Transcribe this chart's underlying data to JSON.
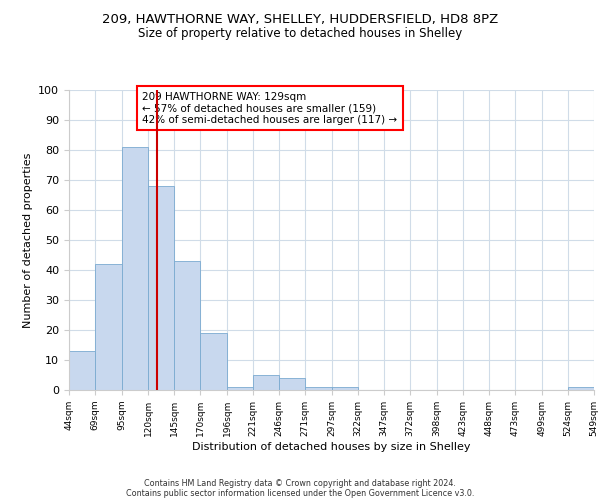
{
  "title1": "209, HAWTHORNE WAY, SHELLEY, HUDDERSFIELD, HD8 8PZ",
  "title2": "Size of property relative to detached houses in Shelley",
  "xlabel": "Distribution of detached houses by size in Shelley",
  "ylabel": "Number of detached properties",
  "annotation_line1": "209 HAWTHORNE WAY: 129sqm",
  "annotation_line2": "← 57% of detached houses are smaller (159)",
  "annotation_line3": "42% of semi-detached houses are larger (117) →",
  "bar_color": "#c8d8ee",
  "bar_edge_color": "#7aaad0",
  "vline_color": "#cc0000",
  "vline_x": 129,
  "bins": [
    44,
    69,
    95,
    120,
    145,
    170,
    196,
    221,
    246,
    271,
    297,
    322,
    347,
    372,
    398,
    423,
    448,
    473,
    499,
    524,
    549
  ],
  "bin_labels": [
    "44sqm",
    "69sqm",
    "95sqm",
    "120sqm",
    "145sqm",
    "170sqm",
    "196sqm",
    "221sqm",
    "246sqm",
    "271sqm",
    "297sqm",
    "322sqm",
    "347sqm",
    "372sqm",
    "398sqm",
    "423sqm",
    "448sqm",
    "473sqm",
    "499sqm",
    "524sqm",
    "549sqm"
  ],
  "counts": [
    13,
    42,
    81,
    68,
    43,
    19,
    1,
    5,
    4,
    1,
    1,
    0,
    0,
    0,
    0,
    0,
    0,
    0,
    0,
    1,
    0
  ],
  "ylim": [
    0,
    100
  ],
  "yticks": [
    0,
    10,
    20,
    30,
    40,
    50,
    60,
    70,
    80,
    90,
    100
  ],
  "footer1": "Contains HM Land Registry data © Crown copyright and database right 2024.",
  "footer2": "Contains public sector information licensed under the Open Government Licence v3.0.",
  "bg_color": "#ffffff",
  "grid_color": "#d0dce8"
}
